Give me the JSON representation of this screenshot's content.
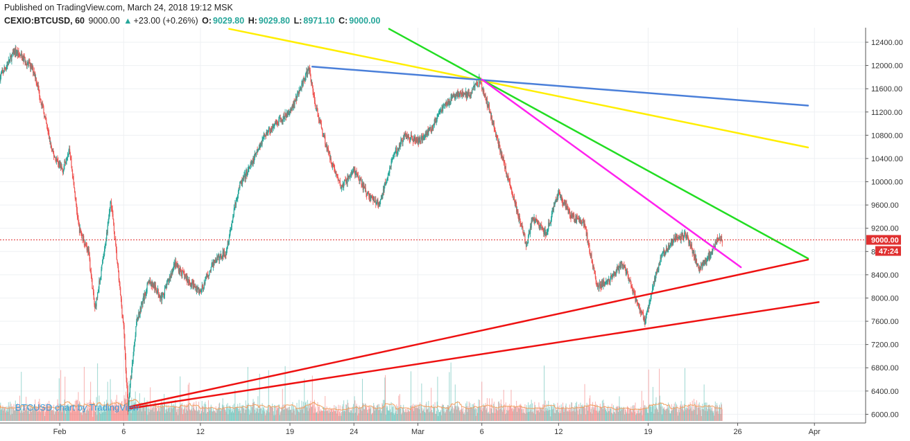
{
  "header": {
    "published": "Published on TradingView.com, March 24, 2018 19:12 MSK",
    "symbol": "CEXIO:BTCUSD, 60",
    "last": "9000.00",
    "change": "+23.00 (+0.26%)",
    "o_label": "O:",
    "o_value": "9029.80",
    "h_label": "H:",
    "h_value": "9029.80",
    "l_label": "L:",
    "l_value": "8971.10",
    "c_label": "C:",
    "c_value": "9000.00",
    "up_arrow_icon": "triangle-up-icon"
  },
  "watermark": "BTCUSD chart by TradingView",
  "price_label": "9000.00",
  "countdown_label": "47:24",
  "colors": {
    "up": "#26a69a",
    "down": "#ef5350",
    "price_line": "#e03030",
    "yellow": "#ffee00",
    "green": "#22dd22",
    "blue": "#4a7fd9",
    "magenta": "#ff22ee",
    "red": "#ee1111"
  },
  "chart_data": {
    "type": "candlestick",
    "title": "",
    "xlabel": "",
    "ylabel": "",
    "ylim": [
      5850,
      12650
    ],
    "y_ticks": [
      "6000.00",
      "6400.00",
      "6800.00",
      "7200.00",
      "7600.00",
      "8000.00",
      "8400.00",
      "8800.00",
      "9200.00",
      "9600.00",
      "10000.00",
      "10400.00",
      "10800.00",
      "11200.00",
      "11600.00",
      "12000.00",
      "12400.00"
    ],
    "x_ticks": [
      {
        "label": "Feb",
        "date": "2018-02-01"
      },
      {
        "label": "6",
        "date": "2018-02-06"
      },
      {
        "label": "12",
        "date": "2018-02-12"
      },
      {
        "label": "19",
        "date": "2018-02-19"
      },
      {
        "label": "24",
        "date": "2018-02-24"
      },
      {
        "label": "Mar",
        "date": "2018-03-01"
      },
      {
        "label": "6",
        "date": "2018-03-06"
      },
      {
        "label": "12",
        "date": "2018-03-12"
      },
      {
        "label": "19",
        "date": "2018-03-19"
      },
      {
        "label": "26",
        "date": "2018-03-26"
      },
      {
        "label": "Apr",
        "date": "2018-04-01"
      }
    ],
    "xlim": [
      "2018-01-27T08:00",
      "2018-04-05T00:00"
    ],
    "last_price": 9000.0,
    "price_path": [
      [
        "2018-01-27T08:00",
        11800
      ],
      [
        "2018-01-28T12:00",
        12250
      ],
      [
        "2018-01-29T06:00",
        12100
      ],
      [
        "2018-01-30T00:00",
        11900
      ],
      [
        "2018-01-30T18:00",
        11200
      ],
      [
        "2018-01-31T10:00",
        10500
      ],
      [
        "2018-02-01T06:00",
        10200
      ],
      [
        "2018-02-01T18:00",
        10600
      ],
      [
        "2018-02-02T12:00",
        9200
      ],
      [
        "2018-02-03T06:00",
        8800
      ],
      [
        "2018-02-03T18:00",
        7800
      ],
      [
        "2018-02-04T12:00",
        8800
      ],
      [
        "2018-02-05T00:00",
        9700
      ],
      [
        "2018-02-05T12:00",
        8600
      ],
      [
        "2018-02-06T00:00",
        7500
      ],
      [
        "2018-02-06T08:00",
        6100
      ],
      [
        "2018-02-07T00:00",
        7600
      ],
      [
        "2018-02-08T00:00",
        8300
      ],
      [
        "2018-02-09T00:00",
        8000
      ],
      [
        "2018-02-10T00:00",
        8600
      ],
      [
        "2018-02-11T00:00",
        8300
      ],
      [
        "2018-02-12T00:00",
        8100
      ],
      [
        "2018-02-13T00:00",
        8600
      ],
      [
        "2018-02-14T00:00",
        8800
      ],
      [
        "2018-02-15T00:00",
        9900
      ],
      [
        "2018-02-16T00:00",
        10300
      ],
      [
        "2018-02-17T00:00",
        10800
      ],
      [
        "2018-02-18T00:00",
        11000
      ],
      [
        "2018-02-19T00:00",
        11200
      ],
      [
        "2018-02-20T12:00",
        11950
      ],
      [
        "2018-02-21T00:00",
        11300
      ],
      [
        "2018-02-22T00:00",
        10500
      ],
      [
        "2018-02-23T00:00",
        9900
      ],
      [
        "2018-02-24T00:00",
        10200
      ],
      [
        "2018-02-25T00:00",
        9800
      ],
      [
        "2018-02-26T00:00",
        9600
      ],
      [
        "2018-02-27T00:00",
        10400
      ],
      [
        "2018-02-28T00:00",
        10800
      ],
      [
        "2018-03-01T00:00",
        10700
      ],
      [
        "2018-03-02T00:00",
        10900
      ],
      [
        "2018-03-03T00:00",
        11300
      ],
      [
        "2018-03-04T00:00",
        11500
      ],
      [
        "2018-03-05T00:00",
        11500
      ],
      [
        "2018-03-05T20:00",
        11750
      ],
      [
        "2018-03-06T12:00",
        11300
      ],
      [
        "2018-03-07T00:00",
        10900
      ],
      [
        "2018-03-08T00:00",
        10100
      ],
      [
        "2018-03-09T00:00",
        9300
      ],
      [
        "2018-03-09T12:00",
        8900
      ],
      [
        "2018-03-10T00:00",
        9400
      ],
      [
        "2018-03-11T00:00",
        9100
      ],
      [
        "2018-03-12T00:00",
        9800
      ],
      [
        "2018-03-13T00:00",
        9400
      ],
      [
        "2018-03-14T00:00",
        9300
      ],
      [
        "2018-03-15T00:00",
        8200
      ],
      [
        "2018-03-16T00:00",
        8300
      ],
      [
        "2018-03-17T00:00",
        8600
      ],
      [
        "2018-03-18T00:00",
        8000
      ],
      [
        "2018-03-18T18:00",
        7600
      ],
      [
        "2018-03-19T12:00",
        8300
      ],
      [
        "2018-03-20T00:00",
        8700
      ],
      [
        "2018-03-21T00:00",
        9000
      ],
      [
        "2018-03-22T00:00",
        9100
      ],
      [
        "2018-03-22T12:00",
        8800
      ],
      [
        "2018-03-23T00:00",
        8500
      ],
      [
        "2018-03-24T00:00",
        8800
      ],
      [
        "2018-03-24T12:00",
        9050
      ],
      [
        "2018-03-24T19:00",
        9000
      ]
    ],
    "trendlines": [
      {
        "color_key": "yellow",
        "from": [
          "2018-02-14T06:00",
          12630
        ],
        "to": [
          "2018-03-31T12:00",
          10590
        ]
      },
      {
        "color_key": "green",
        "from": [
          "2018-02-26T18:00",
          12630
        ],
        "to": [
          "2018-03-31T12:00",
          8680
        ]
      },
      {
        "color_key": "blue",
        "from": [
          "2018-02-20T18:00",
          11980
        ],
        "to": [
          "2018-03-31T12:00",
          11310
        ]
      },
      {
        "color_key": "magenta",
        "from": [
          "2018-03-06T00:00",
          11760
        ],
        "to": [
          "2018-03-26T06:00",
          8530
        ]
      },
      {
        "color_key": "red",
        "from": [
          "2018-02-06T12:00",
          6130
        ],
        "to": [
          "2018-03-31T12:00",
          8660
        ]
      },
      {
        "color_key": "red",
        "from": [
          "2018-02-06T12:00",
          6100
        ],
        "to": [
          "2018-04-01T08:00",
          7930
        ]
      }
    ]
  }
}
